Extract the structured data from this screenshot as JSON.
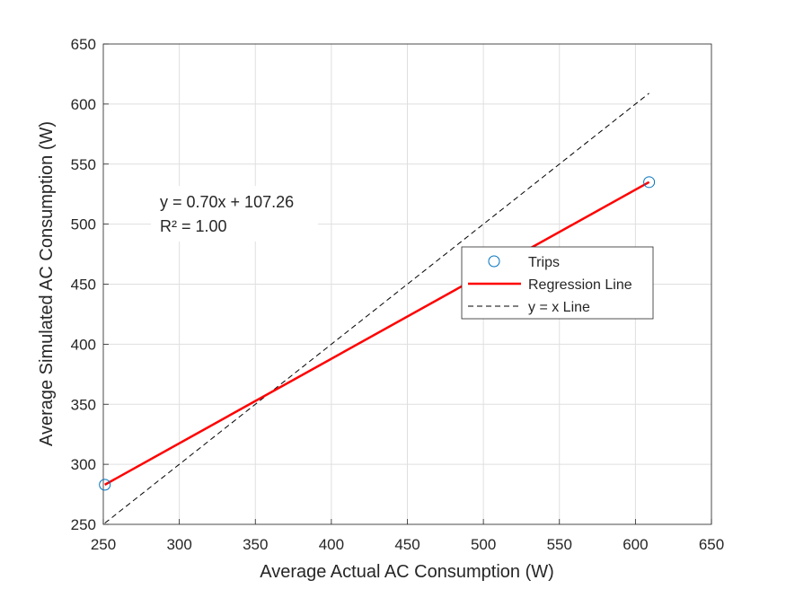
{
  "chart_data": {
    "type": "scatter",
    "xlabel": "Average Actual AC Consumption (W)",
    "ylabel": "Average Simulated AC Consumption (W)",
    "xlim": [
      250,
      650
    ],
    "ylim": [
      250,
      650
    ],
    "xticks": [
      250,
      300,
      350,
      400,
      450,
      500,
      550,
      600,
      650
    ],
    "yticks": [
      250,
      300,
      350,
      400,
      450,
      500,
      550,
      600,
      650
    ],
    "grid": true,
    "series": [
      {
        "name": "Trips",
        "kind": "scatter",
        "color": "#0072BD",
        "x": [
          251,
          609
        ],
        "y": [
          283,
          535
        ]
      },
      {
        "name": "Regression Line",
        "kind": "line",
        "color": "#FF0000",
        "x": [
          251,
          609
        ],
        "y": [
          283,
          535
        ]
      },
      {
        "name": "y = x Line",
        "kind": "dashed-line",
        "color": "#000000",
        "x": [
          251,
          609
        ],
        "y": [
          251,
          609
        ]
      }
    ],
    "annotation": {
      "line1": "y = 0.70x + 107.26",
      "line2": "R² = 1.00"
    },
    "legend_position": "center-right"
  }
}
